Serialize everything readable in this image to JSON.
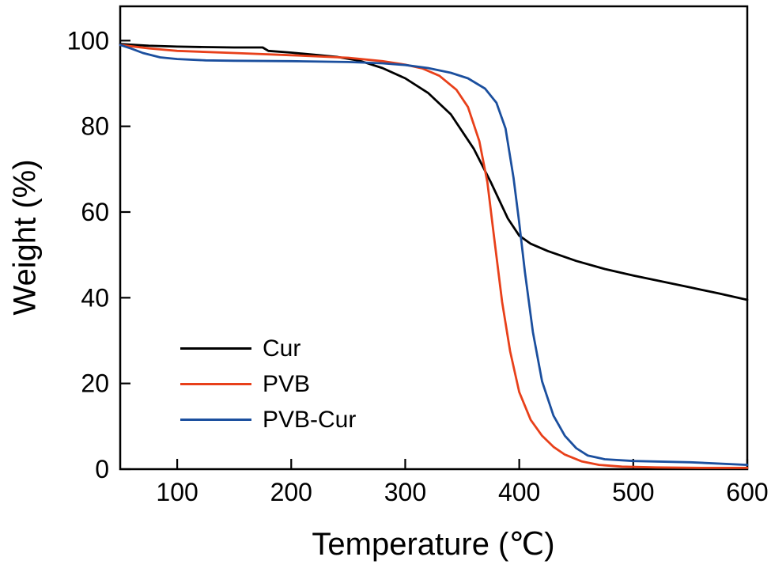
{
  "chart_data": {
    "type": "line",
    "title": "",
    "xlabel": "Temperature (℃)",
    "ylabel": "Weight (%)",
    "xlim": [
      50,
      600
    ],
    "ylim": [
      0,
      108
    ],
    "xticks": [
      100,
      200,
      300,
      400,
      500,
      600
    ],
    "yticks": [
      0,
      20,
      40,
      60,
      80,
      100
    ],
    "grid": false,
    "legend_position": "inside-left-lower",
    "frame_color": "#000000",
    "series": [
      {
        "name": "Cur",
        "color": "#000000",
        "x": [
          50,
          75,
          100,
          125,
          150,
          175,
          180,
          200,
          220,
          240,
          260,
          280,
          300,
          320,
          340,
          360,
          375,
          390,
          400,
          410,
          425,
          450,
          475,
          500,
          525,
          550,
          575,
          600
        ],
        "y": [
          99.2,
          98.8,
          98.6,
          98.5,
          98.4,
          98.4,
          97.6,
          97.2,
          96.7,
          96.2,
          95.3,
          93.6,
          91.2,
          87.8,
          82.8,
          74.8,
          67.0,
          58.5,
          54.5,
          52.6,
          50.9,
          48.6,
          46.7,
          45.2,
          43.8,
          42.4,
          41.0,
          39.5
        ]
      },
      {
        "name": "PVB",
        "color": "#e8401a",
        "x": [
          50,
          75,
          100,
          150,
          200,
          250,
          280,
          300,
          315,
          330,
          345,
          355,
          365,
          372,
          378,
          385,
          392,
          400,
          410,
          420,
          430,
          440,
          455,
          470,
          490,
          520,
          560,
          600
        ],
        "y": [
          99.0,
          98.2,
          97.6,
          97.1,
          96.6,
          96.0,
          95.2,
          94.4,
          93.5,
          91.8,
          88.5,
          84.5,
          76.5,
          67.0,
          54.0,
          39.0,
          27.5,
          18.0,
          11.5,
          7.8,
          5.2,
          3.4,
          1.8,
          1.0,
          0.6,
          0.4,
          0.3,
          0.3
        ]
      },
      {
        "name": "PVB-Cur",
        "color": "#1b4f9e",
        "x": [
          50,
          60,
          70,
          85,
          100,
          125,
          150,
          200,
          250,
          280,
          300,
          320,
          340,
          355,
          370,
          380,
          388,
          395,
          400,
          405,
          412,
          420,
          430,
          440,
          450,
          460,
          475,
          500,
          550,
          600
        ],
        "y": [
          99.0,
          98.1,
          97.1,
          96.1,
          95.7,
          95.4,
          95.3,
          95.2,
          95.0,
          94.7,
          94.3,
          93.6,
          92.5,
          91.2,
          88.8,
          85.5,
          79.5,
          68.0,
          57.5,
          46.0,
          32.0,
          20.5,
          12.5,
          7.8,
          4.9,
          3.2,
          2.3,
          1.9,
          1.6,
          1.0
        ]
      }
    ]
  }
}
